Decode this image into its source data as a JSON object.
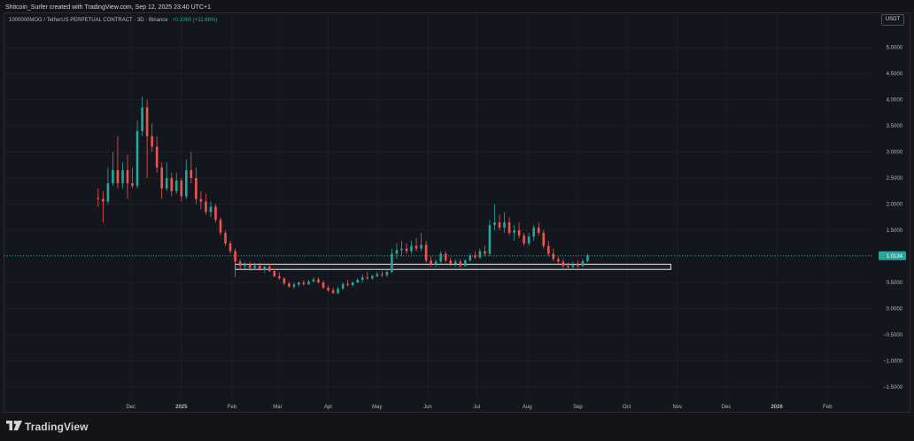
{
  "caption": "Shitcoin_Surfer created with TradingView.com, Sep 12, 2025 23:40 UTC+1",
  "symbol": {
    "name": "1000000MOG / TetherUS PERPETUAL CONTRACT · 3D · Binance",
    "change": "+0.1060 (+11.68%)"
  },
  "currency": "USDT",
  "brand": "TradingView",
  "colors": {
    "up": "#26a69a",
    "down": "#ef5350",
    "price_line": "#26a69a",
    "zone_border": "#e8e8ea",
    "grid": "#1c1f28",
    "axis_text": "#b2b5be"
  },
  "chart_data": {
    "type": "candlestick",
    "timeframe": "3D",
    "pair": "1000000MOG/USDT",
    "exchange": "Binance",
    "y_axis": {
      "ticks": [
        5.0,
        4.5,
        4.0,
        3.5,
        3.0,
        2.5,
        2.0,
        1.5,
        1.0,
        0.5,
        0.0,
        -0.5,
        -1.0,
        -1.5
      ],
      "tick_labels": [
        "5.0000",
        "4.5000",
        "4.0000",
        "3.5000",
        "3.0000",
        "2.5000",
        "2.0000",
        "1.5000",
        "1.0000",
        "0.5000",
        "0.0000",
        "−0.5000",
        "−1.0000",
        "−1.5000"
      ],
      "range": [
        -1.75,
        5.5
      ]
    },
    "x_axis": {
      "labels": [
        {
          "text": "Dec",
          "date": "2024-12-01",
          "bold": false
        },
        {
          "text": "2025",
          "date": "2025-01-01",
          "bold": true
        },
        {
          "text": "Feb",
          "date": "2025-02-01",
          "bold": false
        },
        {
          "text": "Mar",
          "date": "2025-03-01",
          "bold": false
        },
        {
          "text": "Apr",
          "date": "2025-04-01",
          "bold": false
        },
        {
          "text": "May",
          "date": "2025-05-01",
          "bold": false
        },
        {
          "text": "Jun",
          "date": "2025-06-01",
          "bold": false
        },
        {
          "text": "Jul",
          "date": "2025-07-01",
          "bold": false
        },
        {
          "text": "Aug",
          "date": "2025-08-01",
          "bold": false
        },
        {
          "text": "Sep",
          "date": "2025-09-01",
          "bold": false
        },
        {
          "text": "Oct",
          "date": "2025-10-01",
          "bold": false
        },
        {
          "text": "Nov",
          "date": "2025-11-01",
          "bold": false
        },
        {
          "text": "Dec",
          "date": "2025-12-01",
          "bold": false
        },
        {
          "text": "2026",
          "date": "2026-01-01",
          "bold": true
        },
        {
          "text": "Feb",
          "date": "2026-02-01",
          "bold": false
        }
      ],
      "range": [
        "2024-09-14",
        "2026-02-28"
      ]
    },
    "last_price": {
      "value": 1.0134,
      "label": "1.0134"
    },
    "support_zone": {
      "low": 0.75,
      "high": 0.85,
      "start": "2025-02-03",
      "end": "2025-10-28"
    },
    "candles": [
      {
        "date": "2024-11-11",
        "o": 2.12,
        "h": 2.3,
        "l": 1.95,
        "c": 2.1
      },
      {
        "date": "2024-11-14",
        "o": 2.1,
        "h": 2.25,
        "l": 1.65,
        "c": 2.05
      },
      {
        "date": "2024-11-17",
        "o": 2.05,
        "h": 2.7,
        "l": 2.0,
        "c": 2.4
      },
      {
        "date": "2024-11-20",
        "o": 2.4,
        "h": 3.0,
        "l": 2.35,
        "c": 2.65
      },
      {
        "date": "2024-11-23",
        "o": 2.65,
        "h": 3.3,
        "l": 2.3,
        "c": 2.4
      },
      {
        "date": "2024-11-26",
        "o": 2.4,
        "h": 2.8,
        "l": 2.3,
        "c": 2.65
      },
      {
        "date": "2024-11-29",
        "o": 2.65,
        "h": 2.95,
        "l": 2.1,
        "c": 2.4
      },
      {
        "date": "2024-12-02",
        "o": 2.4,
        "h": 2.7,
        "l": 2.3,
        "c": 2.35
      },
      {
        "date": "2024-12-05",
        "o": 2.35,
        "h": 3.6,
        "l": 2.3,
        "c": 3.4
      },
      {
        "date": "2024-12-08",
        "o": 3.4,
        "h": 4.05,
        "l": 3.3,
        "c": 3.85
      },
      {
        "date": "2024-12-11",
        "o": 3.85,
        "h": 4.0,
        "l": 2.5,
        "c": 3.3
      },
      {
        "date": "2024-12-14",
        "o": 3.3,
        "h": 3.55,
        "l": 3.0,
        "c": 3.1
      },
      {
        "date": "2024-12-17",
        "o": 3.1,
        "h": 3.3,
        "l": 2.6,
        "c": 2.7
      },
      {
        "date": "2024-12-20",
        "o": 2.7,
        "h": 2.8,
        "l": 2.1,
        "c": 2.3
      },
      {
        "date": "2024-12-23",
        "o": 2.3,
        "h": 2.8,
        "l": 2.25,
        "c": 2.5
      },
      {
        "date": "2024-12-26",
        "o": 2.5,
        "h": 2.6,
        "l": 2.15,
        "c": 2.25
      },
      {
        "date": "2024-12-29",
        "o": 2.25,
        "h": 2.6,
        "l": 2.2,
        "c": 2.45
      },
      {
        "date": "2025-01-01",
        "o": 2.45,
        "h": 2.5,
        "l": 2.05,
        "c": 2.15
      },
      {
        "date": "2025-01-04",
        "o": 2.15,
        "h": 2.85,
        "l": 2.1,
        "c": 2.65
      },
      {
        "date": "2025-01-07",
        "o": 2.65,
        "h": 3.0,
        "l": 2.4,
        "c": 2.5
      },
      {
        "date": "2025-01-10",
        "o": 2.5,
        "h": 2.7,
        "l": 2.0,
        "c": 2.1
      },
      {
        "date": "2025-01-13",
        "o": 2.1,
        "h": 2.25,
        "l": 1.9,
        "c": 2.05
      },
      {
        "date": "2025-01-16",
        "o": 2.05,
        "h": 2.2,
        "l": 1.8,
        "c": 1.85
      },
      {
        "date": "2025-01-19",
        "o": 1.85,
        "h": 2.05,
        "l": 1.75,
        "c": 1.95
      },
      {
        "date": "2025-01-22",
        "o": 1.95,
        "h": 2.0,
        "l": 1.65,
        "c": 1.7
      },
      {
        "date": "2025-01-25",
        "o": 1.7,
        "h": 1.75,
        "l": 1.4,
        "c": 1.45
      },
      {
        "date": "2025-01-28",
        "o": 1.45,
        "h": 1.5,
        "l": 1.2,
        "c": 1.25
      },
      {
        "date": "2025-01-31",
        "o": 1.25,
        "h": 1.3,
        "l": 1.05,
        "c": 1.1
      },
      {
        "date": "2025-02-03",
        "o": 1.1,
        "h": 1.15,
        "l": 0.6,
        "c": 0.9
      },
      {
        "date": "2025-02-06",
        "o": 0.9,
        "h": 0.95,
        "l": 0.75,
        "c": 0.82
      },
      {
        "date": "2025-02-09",
        "o": 0.82,
        "h": 0.9,
        "l": 0.75,
        "c": 0.85
      },
      {
        "date": "2025-02-12",
        "o": 0.85,
        "h": 0.9,
        "l": 0.72,
        "c": 0.78
      },
      {
        "date": "2025-02-15",
        "o": 0.78,
        "h": 0.88,
        "l": 0.74,
        "c": 0.82
      },
      {
        "date": "2025-02-18",
        "o": 0.82,
        "h": 0.88,
        "l": 0.72,
        "c": 0.75
      },
      {
        "date": "2025-02-21",
        "o": 0.75,
        "h": 0.82,
        "l": 0.68,
        "c": 0.8
      },
      {
        "date": "2025-02-24",
        "o": 0.8,
        "h": 0.85,
        "l": 0.7,
        "c": 0.72
      },
      {
        "date": "2025-02-27",
        "o": 0.72,
        "h": 0.76,
        "l": 0.6,
        "c": 0.62
      },
      {
        "date": "2025-03-02",
        "o": 0.62,
        "h": 0.7,
        "l": 0.55,
        "c": 0.58
      },
      {
        "date": "2025-03-05",
        "o": 0.58,
        "h": 0.6,
        "l": 0.45,
        "c": 0.48
      },
      {
        "date": "2025-03-08",
        "o": 0.48,
        "h": 0.52,
        "l": 0.4,
        "c": 0.42
      },
      {
        "date": "2025-03-11",
        "o": 0.42,
        "h": 0.5,
        "l": 0.38,
        "c": 0.46
      },
      {
        "date": "2025-03-14",
        "o": 0.46,
        "h": 0.52,
        "l": 0.42,
        "c": 0.5
      },
      {
        "date": "2025-03-17",
        "o": 0.5,
        "h": 0.55,
        "l": 0.44,
        "c": 0.47
      },
      {
        "date": "2025-03-20",
        "o": 0.47,
        "h": 0.55,
        "l": 0.45,
        "c": 0.52
      },
      {
        "date": "2025-03-23",
        "o": 0.52,
        "h": 0.6,
        "l": 0.5,
        "c": 0.56
      },
      {
        "date": "2025-03-26",
        "o": 0.56,
        "h": 0.6,
        "l": 0.48,
        "c": 0.5
      },
      {
        "date": "2025-03-29",
        "o": 0.5,
        "h": 0.54,
        "l": 0.38,
        "c": 0.4
      },
      {
        "date": "2025-04-01",
        "o": 0.4,
        "h": 0.45,
        "l": 0.32,
        "c": 0.35
      },
      {
        "date": "2025-04-04",
        "o": 0.35,
        "h": 0.4,
        "l": 0.28,
        "c": 0.3
      },
      {
        "date": "2025-04-07",
        "o": 0.3,
        "h": 0.42,
        "l": 0.27,
        "c": 0.38
      },
      {
        "date": "2025-04-10",
        "o": 0.38,
        "h": 0.5,
        "l": 0.36,
        "c": 0.47
      },
      {
        "date": "2025-04-13",
        "o": 0.47,
        "h": 0.55,
        "l": 0.42,
        "c": 0.45
      },
      {
        "date": "2025-04-16",
        "o": 0.45,
        "h": 0.52,
        "l": 0.42,
        "c": 0.5
      },
      {
        "date": "2025-04-19",
        "o": 0.5,
        "h": 0.58,
        "l": 0.48,
        "c": 0.55
      },
      {
        "date": "2025-04-22",
        "o": 0.55,
        "h": 0.65,
        "l": 0.5,
        "c": 0.6
      },
      {
        "date": "2025-04-25",
        "o": 0.6,
        "h": 0.7,
        "l": 0.55,
        "c": 0.58
      },
      {
        "date": "2025-04-28",
        "o": 0.58,
        "h": 0.65,
        "l": 0.55,
        "c": 0.62
      },
      {
        "date": "2025-05-01",
        "o": 0.62,
        "h": 0.7,
        "l": 0.6,
        "c": 0.66
      },
      {
        "date": "2025-05-04",
        "o": 0.66,
        "h": 0.72,
        "l": 0.6,
        "c": 0.64
      },
      {
        "date": "2025-05-07",
        "o": 0.64,
        "h": 0.75,
        "l": 0.6,
        "c": 0.7
      },
      {
        "date": "2025-05-10",
        "o": 0.7,
        "h": 1.15,
        "l": 0.68,
        "c": 1.05
      },
      {
        "date": "2025-05-13",
        "o": 1.05,
        "h": 1.25,
        "l": 0.95,
        "c": 1.12
      },
      {
        "date": "2025-05-16",
        "o": 1.12,
        "h": 1.3,
        "l": 1.0,
        "c": 1.15
      },
      {
        "date": "2025-05-19",
        "o": 1.15,
        "h": 1.25,
        "l": 1.05,
        "c": 1.1
      },
      {
        "date": "2025-05-22",
        "o": 1.1,
        "h": 1.3,
        "l": 1.05,
        "c": 1.2
      },
      {
        "date": "2025-05-25",
        "o": 1.2,
        "h": 1.35,
        "l": 1.1,
        "c": 1.15
      },
      {
        "date": "2025-05-28",
        "o": 1.15,
        "h": 1.45,
        "l": 1.1,
        "c": 1.22
      },
      {
        "date": "2025-05-31",
        "o": 1.22,
        "h": 1.3,
        "l": 0.88,
        "c": 0.92
      },
      {
        "date": "2025-06-03",
        "o": 0.92,
        "h": 1.0,
        "l": 0.8,
        "c": 0.85
      },
      {
        "date": "2025-06-06",
        "o": 0.85,
        "h": 0.95,
        "l": 0.8,
        "c": 0.9
      },
      {
        "date": "2025-06-09",
        "o": 0.9,
        "h": 1.1,
        "l": 0.85,
        "c": 1.05
      },
      {
        "date": "2025-06-12",
        "o": 1.05,
        "h": 1.1,
        "l": 0.88,
        "c": 0.92
      },
      {
        "date": "2025-06-15",
        "o": 0.92,
        "h": 0.98,
        "l": 0.82,
        "c": 0.86
      },
      {
        "date": "2025-06-18",
        "o": 0.86,
        "h": 0.95,
        "l": 0.8,
        "c": 0.9
      },
      {
        "date": "2025-06-21",
        "o": 0.9,
        "h": 0.95,
        "l": 0.78,
        "c": 0.82
      },
      {
        "date": "2025-06-24",
        "o": 0.82,
        "h": 0.95,
        "l": 0.8,
        "c": 0.92
      },
      {
        "date": "2025-06-27",
        "o": 0.92,
        "h": 1.05,
        "l": 0.9,
        "c": 1.02
      },
      {
        "date": "2025-06-30",
        "o": 1.02,
        "h": 1.1,
        "l": 0.95,
        "c": 0.98
      },
      {
        "date": "2025-07-03",
        "o": 0.98,
        "h": 1.15,
        "l": 0.95,
        "c": 1.1
      },
      {
        "date": "2025-07-06",
        "o": 1.1,
        "h": 1.2,
        "l": 1.0,
        "c": 1.05
      },
      {
        "date": "2025-07-09",
        "o": 1.05,
        "h": 1.7,
        "l": 1.0,
        "c": 1.6
      },
      {
        "date": "2025-07-12",
        "o": 1.6,
        "h": 2.0,
        "l": 1.5,
        "c": 1.65
      },
      {
        "date": "2025-07-15",
        "o": 1.65,
        "h": 1.8,
        "l": 1.5,
        "c": 1.55
      },
      {
        "date": "2025-07-18",
        "o": 1.55,
        "h": 1.85,
        "l": 1.45,
        "c": 1.65
      },
      {
        "date": "2025-07-21",
        "o": 1.65,
        "h": 1.75,
        "l": 1.4,
        "c": 1.45
      },
      {
        "date": "2025-07-24",
        "o": 1.45,
        "h": 1.6,
        "l": 1.3,
        "c": 1.5
      },
      {
        "date": "2025-07-27",
        "o": 1.5,
        "h": 1.65,
        "l": 1.35,
        "c": 1.4
      },
      {
        "date": "2025-07-30",
        "o": 1.4,
        "h": 1.45,
        "l": 1.2,
        "c": 1.25
      },
      {
        "date": "2025-08-02",
        "o": 1.25,
        "h": 1.45,
        "l": 1.2,
        "c": 1.38
      },
      {
        "date": "2025-08-05",
        "o": 1.38,
        "h": 1.6,
        "l": 1.3,
        "c": 1.55
      },
      {
        "date": "2025-08-08",
        "o": 1.55,
        "h": 1.65,
        "l": 1.4,
        "c": 1.45
      },
      {
        "date": "2025-08-11",
        "o": 1.45,
        "h": 1.5,
        "l": 1.15,
        "c": 1.2
      },
      {
        "date": "2025-08-14",
        "o": 1.2,
        "h": 1.3,
        "l": 1.0,
        "c": 1.05
      },
      {
        "date": "2025-08-17",
        "o": 1.05,
        "h": 1.15,
        "l": 0.9,
        "c": 0.95
      },
      {
        "date": "2025-08-20",
        "o": 0.95,
        "h": 1.0,
        "l": 0.85,
        "c": 0.9
      },
      {
        "date": "2025-08-23",
        "o": 0.9,
        "h": 0.95,
        "l": 0.78,
        "c": 0.82
      },
      {
        "date": "2025-08-26",
        "o": 0.82,
        "h": 0.88,
        "l": 0.75,
        "c": 0.8
      },
      {
        "date": "2025-08-29",
        "o": 0.8,
        "h": 0.9,
        "l": 0.74,
        "c": 0.85
      },
      {
        "date": "2025-09-01",
        "o": 0.85,
        "h": 0.92,
        "l": 0.78,
        "c": 0.82
      },
      {
        "date": "2025-09-04",
        "o": 0.82,
        "h": 0.95,
        "l": 0.8,
        "c": 0.91
      },
      {
        "date": "2025-09-07",
        "o": 0.91,
        "h": 1.05,
        "l": 0.88,
        "c": 1.0134
      }
    ]
  }
}
